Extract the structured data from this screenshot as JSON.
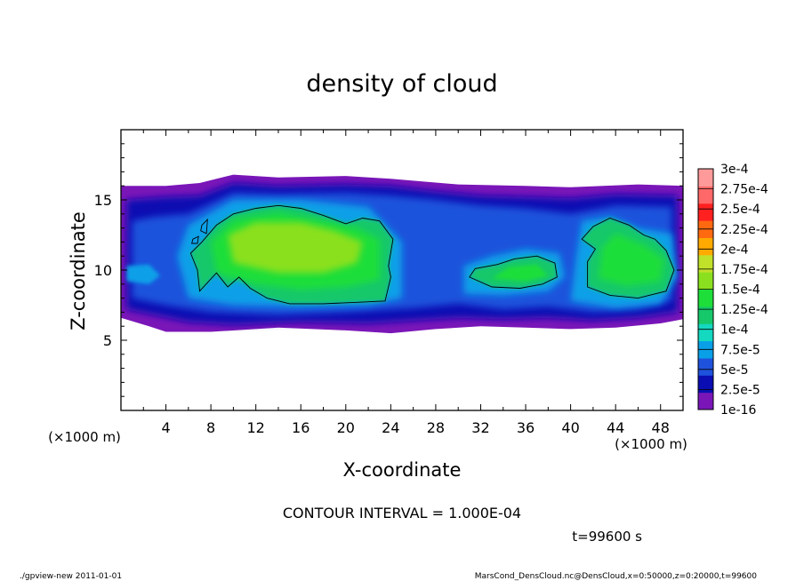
{
  "chart_data": {
    "type": "heatmap",
    "title": "density of cloud",
    "xlabel": "X-coordinate",
    "ylabel": "Z-coordinate",
    "x_unit_label": "(×1000 m)",
    "x_unit_label_right": "(×1000 m)",
    "xlim": [
      0,
      50
    ],
    "ylim": [
      0,
      20
    ],
    "x_ticks": [
      4,
      8,
      12,
      16,
      20,
      24,
      28,
      32,
      36,
      40,
      44,
      48
    ],
    "x_tick_labels": [
      "4",
      "8",
      "12",
      "16",
      "20",
      "24",
      "28",
      "32",
      "36",
      "40",
      "44",
      "48"
    ],
    "y_ticks": [
      5,
      10,
      15
    ],
    "y_tick_labels": [
      "5",
      "10",
      "15"
    ],
    "contour_level": 0.0001,
    "colorbar": {
      "labels": [
        "1e-16",
        "2.5e-5",
        "5e-5",
        "7.5e-5",
        "1e-4",
        "1.25e-4",
        "1.5e-4",
        "1.75e-4",
        "2e-4",
        "2.25e-4",
        "2.5e-4",
        "2.75e-4",
        "3e-4"
      ],
      "colors": [
        "#7a16b8",
        "#0a0eb2",
        "#1f52dc",
        "#0aa0e8",
        "#14d8c0",
        "#16c86a",
        "#1ede3a",
        "#8ae01e",
        "#c0e02a",
        "#ffaa00",
        "#ff6a10",
        "#ff2020",
        "#ff6868",
        "#ff9a9a"
      ]
    },
    "regions": [
      {
        "name": "outer cloud",
        "x_range": [
          0,
          50
        ],
        "z_range": [
          5.5,
          16.5
        ],
        "value": "1e-16 – 2.5e-5"
      },
      {
        "name": "main cloud core",
        "x_range": [
          7,
          24
        ],
        "z_range": [
          7.5,
          14.5
        ],
        "value": "1.25e-4 – 1.75e-4"
      },
      {
        "name": "middle cell",
        "x_range": [
          31,
          39
        ],
        "z_range": [
          8,
          11
        ],
        "value": "1e-4 – 1.25e-4"
      },
      {
        "name": "right cell",
        "x_range": [
          40,
          49
        ],
        "z_range": [
          7.5,
          13.5
        ],
        "value": "1.25e-4 – 1.5e-4"
      }
    ]
  },
  "annotations": {
    "contour_interval": "CONTOUR INTERVAL = 1.000E-04",
    "time": "t=99600 s",
    "footer_left": "./gpview-new  2011-01-01",
    "footer_right": "MarsCond_DensCloud.nc@DensCloud,x=0:50000,z=0:20000,t=99600"
  }
}
